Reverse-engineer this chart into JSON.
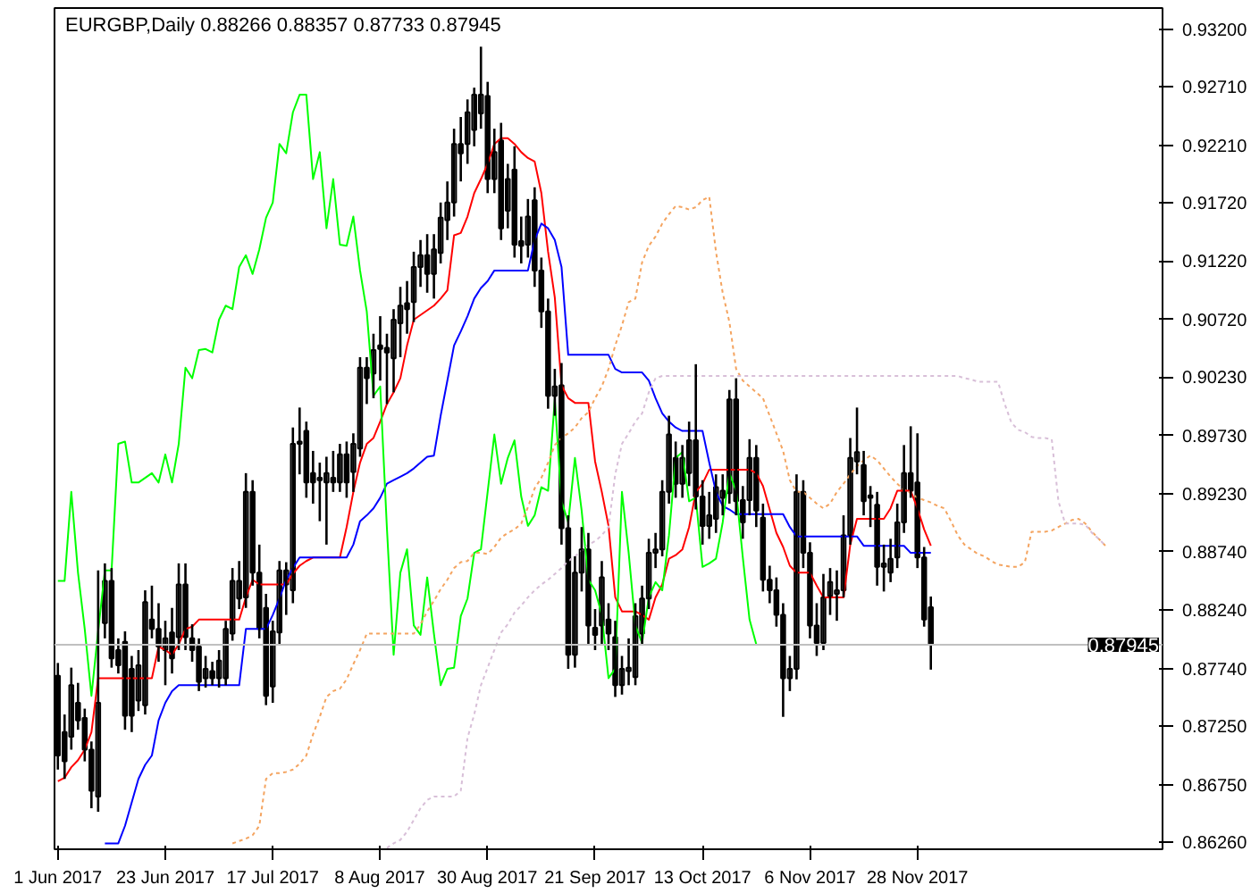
{
  "chart_data": {
    "type": "candlestick",
    "title": "EURGBP,Daily  0.88266 0.88357 0.87733 0.87945",
    "categories": [
      "1 Jun 2017",
      null,
      null,
      null,
      null,
      null,
      null,
      null,
      null,
      null,
      null,
      null,
      null,
      null,
      null,
      null,
      "23 Jun 2017",
      null,
      null,
      null,
      null,
      null,
      null,
      null,
      null,
      null,
      null,
      null,
      null,
      null,
      null,
      null,
      "17 Jul 2017",
      null,
      null,
      null,
      null,
      null,
      null,
      null,
      null,
      null,
      null,
      null,
      null,
      null,
      null,
      null,
      "8 Aug 2017",
      null,
      null,
      null,
      null,
      null,
      null,
      null,
      null,
      null,
      null,
      null,
      null,
      null,
      null,
      null,
      "30 Aug 2017",
      null,
      null,
      null,
      null,
      null,
      null,
      null,
      null,
      null,
      null,
      null,
      null,
      null,
      null,
      null,
      "21 Sep 2017",
      null,
      null,
      null,
      null,
      null,
      null,
      null,
      null,
      null,
      null,
      null,
      null,
      null,
      null,
      null,
      "13 Oct 2017",
      null,
      null,
      null,
      null,
      null,
      null,
      null,
      null,
      null,
      null,
      null,
      null,
      null,
      null,
      null,
      "6 Nov 2017",
      null,
      null,
      null,
      null,
      null,
      null,
      null,
      null,
      null,
      null,
      null,
      null,
      null,
      null,
      null,
      "28 Nov 2017",
      null,
      null,
      null,
      null,
      null,
      null,
      null,
      null,
      null,
      null,
      null,
      null,
      null,
      null,
      null,
      null,
      null,
      null,
      null,
      null,
      null,
      null,
      null,
      null,
      null,
      null,
      null,
      null
    ],
    "ohlc": [
      [
        0.8768,
        0.8779,
        0.8688,
        0.87
      ],
      [
        0.872,
        0.8735,
        0.868,
        0.8695
      ],
      [
        0.8716,
        0.8775,
        0.8705,
        0.876
      ],
      [
        0.8745,
        0.8762,
        0.8722,
        0.873
      ],
      [
        0.8732,
        0.874,
        0.8695,
        0.8705
      ],
      [
        0.8705,
        0.8712,
        0.8655,
        0.867
      ],
      [
        0.8665,
        0.8858,
        0.8652,
        0.8745
      ],
      [
        0.8813,
        0.8864,
        0.88,
        0.8849
      ],
      [
        0.8849,
        0.886,
        0.8775,
        0.8783
      ],
      [
        0.879,
        0.88,
        0.877,
        0.8777
      ],
      [
        0.8797,
        0.8806,
        0.8722,
        0.8734
      ],
      [
        0.8774,
        0.8785,
        0.872,
        0.8734
      ],
      [
        0.8747,
        0.879,
        0.8738,
        0.8777
      ],
      [
        0.8743,
        0.8841,
        0.8735,
        0.8831
      ],
      [
        0.8816,
        0.8845,
        0.88,
        0.8808
      ],
      [
        0.8808,
        0.883,
        0.878,
        0.8793
      ],
      [
        0.879,
        0.8815,
        0.876,
        0.88
      ],
      [
        0.8805,
        0.8826,
        0.877,
        0.8783
      ],
      [
        0.8801,
        0.8864,
        0.879,
        0.8846
      ],
      [
        0.8846,
        0.8864,
        0.879,
        0.8801
      ],
      [
        0.88,
        0.8812,
        0.878,
        0.879
      ],
      [
        0.8793,
        0.88,
        0.8755,
        0.8763
      ],
      [
        0.8766,
        0.8785,
        0.8758,
        0.8774
      ],
      [
        0.8772,
        0.878,
        0.876,
        0.8766
      ],
      [
        0.8766,
        0.879,
        0.8758,
        0.8781
      ],
      [
        0.8766,
        0.8815,
        0.876,
        0.8808
      ],
      [
        0.8804,
        0.886,
        0.8798,
        0.8849
      ],
      [
        0.8834,
        0.8866,
        0.8825,
        0.8849
      ],
      [
        0.8835,
        0.8941,
        0.8826,
        0.8925
      ],
      [
        0.8925,
        0.8935,
        0.8845,
        0.8856
      ],
      [
        0.8856,
        0.888,
        0.88,
        0.8808
      ],
      [
        0.8826,
        0.8838,
        0.8743,
        0.8751
      ],
      [
        0.8759,
        0.8815,
        0.8745,
        0.8806
      ],
      [
        0.8805,
        0.8866,
        0.8795,
        0.8858
      ],
      [
        0.8846,
        0.8865,
        0.882,
        0.8858
      ],
      [
        0.8841,
        0.898,
        0.883,
        0.8966
      ],
      [
        0.8966,
        0.8997,
        0.894,
        0.8968
      ],
      [
        0.8977,
        0.8985,
        0.892,
        0.8933
      ],
      [
        0.8941,
        0.896,
        0.8915,
        0.8933
      ],
      [
        0.8935,
        0.895,
        0.89,
        0.8937
      ],
      [
        0.8933,
        0.8955,
        0.888,
        0.8941
      ],
      [
        0.8937,
        0.896,
        0.8925,
        0.8933
      ],
      [
        0.8933,
        0.8966,
        0.8925,
        0.8957
      ],
      [
        0.8957,
        0.8968,
        0.892,
        0.8933
      ],
      [
        0.8942,
        0.8975,
        0.8925,
        0.8966
      ],
      [
        0.8962,
        0.904,
        0.8955,
        0.9031
      ],
      [
        0.9031,
        0.904,
        0.9,
        0.9022
      ],
      [
        0.9026,
        0.906,
        0.9005,
        0.9046
      ],
      [
        0.905,
        0.9075,
        0.902,
        0.9047
      ],
      [
        0.9048,
        0.906,
        0.9,
        0.9044
      ],
      [
        0.9039,
        0.9081,
        0.901,
        0.9072
      ],
      [
        0.9069,
        0.91,
        0.904,
        0.9084
      ],
      [
        0.9086,
        0.9105,
        0.906,
        0.9081
      ],
      [
        0.9087,
        0.913,
        0.907,
        0.9117
      ],
      [
        0.9117,
        0.914,
        0.91,
        0.9127
      ],
      [
        0.9127,
        0.9145,
        0.9095,
        0.9111
      ],
      [
        0.9111,
        0.9145,
        0.909,
        0.9132
      ],
      [
        0.9129,
        0.9172,
        0.912,
        0.9159
      ],
      [
        0.9157,
        0.919,
        0.914,
        0.9172
      ],
      [
        0.9172,
        0.9235,
        0.916,
        0.9222
      ],
      [
        0.9222,
        0.9245,
        0.919,
        0.9214
      ],
      [
        0.9222,
        0.926,
        0.9205,
        0.9249
      ],
      [
        0.9234,
        0.927,
        0.922,
        0.9264
      ],
      [
        0.9248,
        0.9305,
        0.9235,
        0.9264
      ],
      [
        0.9263,
        0.9275,
        0.918,
        0.9192
      ],
      [
        0.9192,
        0.9235,
        0.918,
        0.9215
      ],
      [
        0.9225,
        0.924,
        0.914,
        0.915
      ],
      [
        0.9165,
        0.9205,
        0.915,
        0.9192
      ],
      [
        0.92,
        0.922,
        0.9125,
        0.9136
      ],
      [
        0.9139,
        0.916,
        0.912,
        0.9135
      ],
      [
        0.9136,
        0.9175,
        0.9125,
        0.916
      ],
      [
        0.9174,
        0.9185,
        0.91,
        0.9114
      ],
      [
        0.9114,
        0.9125,
        0.9065,
        0.9079
      ],
      [
        0.9079,
        0.909,
        0.8996,
        0.9007
      ],
      [
        0.9007,
        0.903,
        0.899,
        0.9015
      ],
      [
        0.9016,
        0.9035,
        0.888,
        0.8894
      ],
      [
        0.8894,
        0.8905,
        0.8774,
        0.8786
      ],
      [
        0.8786,
        0.887,
        0.8775,
        0.8856
      ],
      [
        0.8856,
        0.8895,
        0.884,
        0.8876
      ],
      [
        0.8876,
        0.889,
        0.8795,
        0.8811
      ],
      [
        0.8809,
        0.8825,
        0.879,
        0.8803
      ],
      [
        0.8811,
        0.8866,
        0.8795,
        0.8852
      ],
      [
        0.8816,
        0.883,
        0.879,
        0.8804
      ],
      [
        0.8801,
        0.8815,
        0.875,
        0.876
      ],
      [
        0.876,
        0.8785,
        0.8752,
        0.8774
      ],
      [
        0.8772,
        0.88,
        0.876,
        0.8775
      ],
      [
        0.8767,
        0.883,
        0.876,
        0.8819
      ],
      [
        0.8804,
        0.8845,
        0.8795,
        0.8834
      ],
      [
        0.8834,
        0.8885,
        0.8825,
        0.8873
      ],
      [
        0.8873,
        0.889,
        0.886,
        0.8876
      ],
      [
        0.8876,
        0.8935,
        0.887,
        0.8925
      ],
      [
        0.8925,
        0.899,
        0.8915,
        0.8974
      ],
      [
        0.8954,
        0.8968,
        0.892,
        0.8932
      ],
      [
        0.8932,
        0.8965,
        0.892,
        0.8954
      ],
      [
        0.8941,
        0.8985,
        0.893,
        0.8969
      ],
      [
        0.8969,
        0.9034,
        0.891,
        0.8921
      ],
      [
        0.8921,
        0.8935,
        0.888,
        0.8896
      ],
      [
        0.8896,
        0.8925,
        0.8885,
        0.8905
      ],
      [
        0.8902,
        0.894,
        0.889,
        0.8929
      ],
      [
        0.892,
        0.894,
        0.8905,
        0.8926
      ],
      [
        0.8924,
        0.9012,
        0.8915,
        0.9004
      ],
      [
        0.9004,
        0.9022,
        0.8905,
        0.8917
      ],
      [
        0.8918,
        0.893,
        0.8885,
        0.8899
      ],
      [
        0.8918,
        0.897,
        0.8905,
        0.8954
      ],
      [
        0.8954,
        0.8965,
        0.8895,
        0.8909
      ],
      [
        0.8903,
        0.8915,
        0.884,
        0.885
      ],
      [
        0.885,
        0.8862,
        0.883,
        0.8841
      ],
      [
        0.8841,
        0.8852,
        0.881,
        0.882
      ],
      [
        0.882,
        0.883,
        0.8733,
        0.8766
      ],
      [
        0.8766,
        0.8785,
        0.8755,
        0.8774
      ],
      [
        0.8774,
        0.894,
        0.8765,
        0.8925
      ],
      [
        0.8925,
        0.8935,
        0.886,
        0.8873
      ],
      [
        0.8873,
        0.8882,
        0.88,
        0.8811
      ],
      [
        0.8811,
        0.883,
        0.8785,
        0.8796
      ],
      [
        0.8796,
        0.8855,
        0.879,
        0.8835
      ],
      [
        0.8836,
        0.886,
        0.882,
        0.8848
      ],
      [
        0.8838,
        0.8858,
        0.8815,
        0.8841
      ],
      [
        0.8841,
        0.8905,
        0.8835,
        0.8888
      ],
      [
        0.8888,
        0.8971,
        0.888,
        0.8954
      ],
      [
        0.8951,
        0.8997,
        0.894,
        0.8959
      ],
      [
        0.8948,
        0.896,
        0.8905,
        0.8917
      ],
      [
        0.8922,
        0.893,
        0.8895,
        0.892
      ],
      [
        0.8914,
        0.8925,
        0.8845,
        0.8861
      ],
      [
        0.8861,
        0.888,
        0.884,
        0.8864
      ],
      [
        0.8856,
        0.8885,
        0.8848,
        0.8868
      ],
      [
        0.8869,
        0.8915,
        0.886,
        0.8899
      ],
      [
        0.8899,
        0.8965,
        0.889,
        0.8941
      ],
      [
        0.8941,
        0.8981,
        0.892,
        0.8926
      ],
      [
        0.8933,
        0.8975,
        0.886,
        0.8869
      ],
      [
        0.8869,
        0.8878,
        0.881,
        0.8816
      ],
      [
        0.88266,
        0.88357,
        0.87733,
        0.87945
      ],
      null,
      null,
      null,
      null,
      null,
      null,
      null,
      null,
      null,
      null,
      null,
      null,
      null,
      null,
      null,
      null,
      null,
      null,
      null,
      null,
      null,
      null,
      null,
      null,
      null,
      null
    ],
    "series": [
      {
        "type": "line",
        "color": "#ff0000",
        "line_style": "solid",
        "values": [
          0.8678,
          0.8681,
          0.869,
          0.8696,
          0.8705,
          0.872,
          0.8766,
          0.8766,
          0.8766,
          0.8766,
          0.8766,
          0.8766,
          0.8766,
          0.8766,
          0.8766,
          0.8793,
          0.879,
          0.8786,
          0.8795,
          0.8808,
          0.881,
          0.8816,
          0.8816,
          0.8816,
          0.8816,
          0.8816,
          0.8816,
          0.8816,
          0.8835,
          0.885,
          0.8846,
          0.8846,
          0.8846,
          0.8846,
          0.8846,
          0.8855,
          0.8862,
          0.8866,
          0.8869,
          0.8869,
          0.8869,
          0.8869,
          0.8869,
          0.8895,
          0.8925,
          0.895,
          0.8966,
          0.8971,
          0.8985,
          0.9,
          0.901,
          0.9022,
          0.905,
          0.9072,
          0.9076,
          0.908,
          0.9084,
          0.909,
          0.9097,
          0.9144,
          0.9146,
          0.916,
          0.918,
          0.9192,
          0.9205,
          0.9222,
          0.9227,
          0.9227,
          0.9222,
          0.9215,
          0.921,
          0.9207,
          0.918,
          0.913,
          0.9091,
          0.9016,
          0.9005,
          0.9001,
          0.9001,
          0.9001,
          0.8951,
          0.8925,
          0.8896,
          0.8835,
          0.8823,
          0.8823,
          0.8823,
          0.882,
          0.8816,
          0.8835,
          0.8846,
          0.8868,
          0.8871,
          0.8876,
          0.8895,
          0.8925,
          0.8932,
          0.8944,
          0.8944,
          0.8944,
          0.8944,
          0.8944,
          0.8944,
          0.8944,
          0.8941,
          0.893,
          0.891,
          0.889,
          0.8878,
          0.8862,
          0.8856,
          0.8856,
          0.8856,
          0.8845,
          0.8835,
          0.8835,
          0.8835,
          0.8835,
          0.888,
          0.8902,
          0.8902,
          0.8902,
          0.8902,
          0.8902,
          0.8911,
          0.8926,
          0.8926,
          0.8926,
          0.8911,
          0.8893,
          0.8879,
          null,
          null,
          null,
          null,
          null,
          null,
          null,
          null,
          null,
          null,
          null,
          null,
          null,
          null,
          null,
          null,
          null,
          null,
          null,
          null,
          null,
          null,
          null,
          null,
          null,
          null
        ]
      },
      {
        "type": "line",
        "color": "#0000ff",
        "line_style": "solid",
        "values": [
          null,
          null,
          null,
          null,
          null,
          null,
          null,
          0.8625,
          0.8625,
          0.8625,
          0.864,
          0.866,
          0.868,
          0.8692,
          0.87,
          0.873,
          0.8745,
          0.8755,
          0.876,
          0.876,
          0.876,
          0.876,
          0.876,
          0.876,
          0.876,
          0.876,
          0.876,
          0.876,
          0.8808,
          0.8808,
          0.8808,
          0.8808,
          0.882,
          0.8834,
          0.885,
          0.886,
          0.8869,
          0.8869,
          0.8869,
          0.8869,
          0.8869,
          0.8869,
          0.8869,
          0.8869,
          0.888,
          0.89,
          0.8905,
          0.8911,
          0.892,
          0.8932,
          0.8935,
          0.8938,
          0.8941,
          0.8945,
          0.895,
          0.8955,
          0.8956,
          0.899,
          0.902,
          0.905,
          0.9062,
          0.9075,
          0.909,
          0.9099,
          0.9105,
          0.9114,
          0.9114,
          0.9114,
          0.9114,
          0.9114,
          0.9114,
          0.914,
          0.9154,
          0.915,
          0.914,
          0.9117,
          0.9042,
          0.9042,
          0.9042,
          0.9042,
          0.9042,
          0.9042,
          0.9042,
          0.903,
          0.9027,
          0.9027,
          0.9027,
          0.9027,
          0.902,
          0.9005,
          0.8992,
          0.8985,
          0.898,
          0.8977,
          0.8977,
          0.8977,
          0.8977,
          0.895,
          0.8925,
          0.8913,
          0.891,
          0.8906,
          0.8906,
          0.8906,
          0.8906,
          0.8906,
          0.8906,
          0.8906,
          0.8906,
          0.8895,
          0.8887,
          0.8887,
          0.8887,
          0.8887,
          0.8887,
          0.8887,
          0.8887,
          0.8887,
          0.8887,
          0.8887,
          0.8879,
          0.8879,
          0.8879,
          0.8879,
          0.8879,
          0.8879,
          0.8879,
          0.8873,
          0.8873,
          0.8873,
          0.8873,
          null,
          null,
          null,
          null,
          null,
          null,
          null,
          null,
          null,
          null,
          null,
          null,
          null,
          null,
          null,
          null,
          null,
          null,
          null,
          null,
          null,
          null,
          null,
          null,
          null,
          null
        ]
      },
      {
        "type": "line",
        "color": "#00ff00",
        "line_style": "solid",
        "values": [
          0.8849,
          0.8849,
          0.8925,
          0.8856,
          0.8808,
          0.8751,
          0.8806,
          0.8858,
          0.8858,
          0.8966,
          0.8968,
          0.8933,
          0.8933,
          0.8937,
          0.8941,
          0.8933,
          0.8957,
          0.8933,
          0.8966,
          0.9031,
          0.9022,
          0.9046,
          0.9047,
          0.9044,
          0.9072,
          0.9084,
          0.9081,
          0.9117,
          0.9127,
          0.9111,
          0.9132,
          0.9159,
          0.9172,
          0.9222,
          0.9214,
          0.9249,
          0.9264,
          0.9264,
          0.9192,
          0.9215,
          0.915,
          0.9192,
          0.9136,
          0.9135,
          0.916,
          0.9114,
          0.9079,
          0.9007,
          0.9015,
          0.8894,
          0.8786,
          0.8856,
          0.8876,
          0.8811,
          0.8803,
          0.8852,
          0.8804,
          0.876,
          0.8774,
          0.8775,
          0.8819,
          0.8834,
          0.8873,
          0.8876,
          0.8925,
          0.8974,
          0.8932,
          0.8954,
          0.8969,
          0.8921,
          0.8896,
          0.8905,
          0.8929,
          0.8926,
          0.9004,
          0.8917,
          0.8899,
          0.8954,
          0.8909,
          0.885,
          0.8841,
          0.882,
          0.8766,
          0.8774,
          0.8925,
          0.8873,
          0.8811,
          0.8796,
          0.8835,
          0.8848,
          0.8841,
          0.8888,
          0.8954,
          0.8959,
          0.8917,
          0.892,
          0.8861,
          0.8864,
          0.8868,
          0.8899,
          0.8941,
          0.8926,
          0.8869,
          0.8816,
          0.8795,
          null,
          null,
          null,
          null,
          null,
          null,
          null,
          null,
          null,
          null,
          null,
          null,
          null,
          null,
          null,
          null,
          null,
          null,
          null,
          null,
          null,
          null,
          null,
          null,
          null,
          null,
          null,
          null,
          null,
          null,
          null,
          null,
          null,
          null,
          null,
          null,
          null,
          null,
          null,
          null,
          null,
          null,
          null,
          null,
          null,
          null,
          null,
          null,
          null,
          null,
          null,
          null
        ]
      },
      {
        "type": "line",
        "color": "#f4a460",
        "line_style": "dotted",
        "values": [
          null,
          null,
          null,
          null,
          null,
          null,
          null,
          null,
          null,
          null,
          null,
          null,
          null,
          null,
          null,
          null,
          null,
          null,
          null,
          null,
          null,
          null,
          null,
          null,
          null,
          null,
          0.8625,
          0.8627,
          0.8629,
          0.8632,
          0.864,
          0.868,
          0.8685,
          0.8685,
          0.8686,
          0.8688,
          0.8693,
          0.87,
          0.8718,
          0.8733,
          0.875,
          0.8755,
          0.8757,
          0.8765,
          0.8778,
          0.879,
          0.8804,
          0.8804,
          0.8804,
          0.8804,
          0.8804,
          0.8804,
          0.8804,
          0.8804,
          0.8812,
          0.8823,
          0.8832,
          0.8842,
          0.885,
          0.886,
          0.8865,
          0.8866,
          0.8873,
          0.8873,
          0.8872,
          0.8878,
          0.8886,
          0.889,
          0.8893,
          0.8898,
          0.8912,
          0.8928,
          0.8937,
          0.895,
          0.8965,
          0.8971,
          0.8975,
          0.898,
          0.8988,
          0.8993,
          0.9005,
          0.9015,
          0.903,
          0.905,
          0.9067,
          0.9087,
          0.909,
          0.9121,
          0.9135,
          0.9143,
          0.9154,
          0.9162,
          0.9169,
          0.9168,
          0.9166,
          0.9168,
          0.9174,
          0.9177,
          0.913,
          0.9095,
          0.907,
          0.903,
          0.902,
          0.9015,
          0.901,
          0.9005,
          0.899,
          0.8975,
          0.896,
          0.8935,
          0.8925,
          0.8925,
          0.892,
          0.8915,
          0.8911,
          0.8915,
          0.8925,
          0.8932,
          0.894,
          0.8947,
          0.8952,
          0.8956,
          0.8952,
          0.8945,
          0.8938,
          0.8932,
          0.8927,
          0.8924,
          0.892,
          0.8918,
          0.8916,
          0.8913,
          0.8911,
          0.89,
          0.8888,
          0.888,
          0.8876,
          0.8872,
          0.887,
          0.8866,
          0.8863,
          0.8862,
          0.8861,
          0.8861,
          0.8865,
          0.8891,
          0.8891,
          0.8891,
          0.8892,
          0.8895,
          0.8898,
          0.8901,
          0.8902,
          0.8898,
          0.8891,
          0.8885,
          0.8879
        ]
      },
      {
        "type": "line",
        "color": "#d8bfd8",
        "line_style": "dotted",
        "values": [
          null,
          null,
          null,
          null,
          null,
          null,
          null,
          null,
          null,
          null,
          null,
          null,
          null,
          null,
          null,
          null,
          null,
          null,
          null,
          null,
          null,
          null,
          null,
          null,
          null,
          null,
          null,
          null,
          null,
          null,
          null,
          null,
          null,
          null,
          null,
          null,
          null,
          null,
          null,
          null,
          null,
          null,
          null,
          null,
          null,
          null,
          null,
          null,
          null,
          0.8621,
          0.8625,
          0.8628,
          0.8635,
          0.8645,
          0.8655,
          0.8662,
          0.8665,
          0.8665,
          0.8665,
          0.8665,
          0.867,
          0.8715,
          0.8735,
          0.876,
          0.8775,
          0.879,
          0.8805,
          0.8812,
          0.8822,
          0.8828,
          0.8835,
          0.8841,
          0.8846,
          0.885,
          0.8855,
          0.886,
          0.8866,
          0.887,
          0.8875,
          0.888,
          0.8883,
          0.8888,
          0.8895,
          0.894,
          0.8966,
          0.8975,
          0.8985,
          0.8992,
          0.901,
          0.9022,
          0.9024,
          0.9024,
          0.9024,
          0.9024,
          0.9024,
          0.9024,
          0.9024,
          0.9024,
          0.9024,
          0.9024,
          0.9024,
          0.9024,
          0.9024,
          0.9024,
          0.9024,
          0.9024,
          0.9024,
          0.9024,
          0.9024,
          0.9024,
          0.9024,
          0.9024,
          0.9024,
          0.9024,
          0.9024,
          0.9024,
          0.9024,
          0.9024,
          0.9024,
          0.9024,
          0.9024,
          0.9024,
          0.9024,
          0.9024,
          0.9024,
          0.9024,
          0.9024,
          0.9024,
          0.9024,
          0.9024,
          0.9024,
          0.9024,
          0.9024,
          0.9024,
          0.9024,
          0.9022,
          0.9021,
          0.9019,
          0.9019,
          0.9019,
          0.9019,
          0.9,
          0.8984,
          0.8978,
          0.8976,
          0.8972,
          0.8971,
          0.8971,
          0.897,
          0.8917,
          0.8898,
          0.8898,
          0.8898,
          0.8897,
          0.889,
          0.8885,
          0.8879
        ]
      }
    ],
    "ylim": [
      0.862,
      0.9338
    ],
    "yticks": [
      {
        "value": 0.932,
        "label": "0.93200"
      },
      {
        "value": 0.9271,
        "label": "0.92710"
      },
      {
        "value": 0.9221,
        "label": "0.92210"
      },
      {
        "value": 0.9172,
        "label": "0.91720"
      },
      {
        "value": 0.9122,
        "label": "0.91220"
      },
      {
        "value": 0.9072,
        "label": "0.90720"
      },
      {
        "value": 0.9023,
        "label": "0.90230"
      },
      {
        "value": 0.8973,
        "label": "0.89730"
      },
      {
        "value": 0.8923,
        "label": "0.89230"
      },
      {
        "value": 0.8874,
        "label": "0.88740"
      },
      {
        "value": 0.8824,
        "label": "0.88240"
      },
      {
        "value": 0.8774,
        "label": "0.87740"
      },
      {
        "value": 0.8725,
        "label": "0.87250"
      },
      {
        "value": 0.8675,
        "label": "0.86750"
      },
      {
        "value": 0.8626,
        "label": "0.86260"
      }
    ],
    "ref_lines": [
      {
        "axis": "y",
        "value": 0.87945,
        "label": "0.87945",
        "color": "#c0c0c0"
      }
    ]
  }
}
